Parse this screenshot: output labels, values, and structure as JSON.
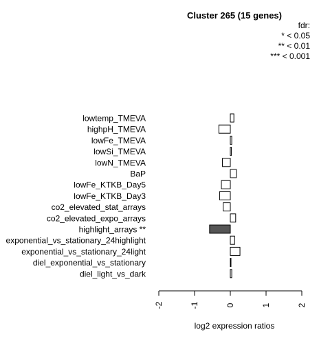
{
  "chart_data": {
    "type": "bar",
    "orientation": "horizontal",
    "title": "Cluster 265 (15 genes)",
    "legend": {
      "placement": "top-right",
      "lines": [
        "fdr:",
        "* < 0.05",
        "** < 0.01",
        "*** < 0.001"
      ]
    },
    "xlabel": "log2 expression ratios",
    "xlim": [
      -2,
      2
    ],
    "xticks": [
      "-2",
      "-1",
      "0",
      "1",
      "2"
    ],
    "tick_values": [
      -2,
      -1,
      0,
      1,
      2
    ],
    "categories": [
      "lowtemp_TMEVA",
      "highpH_TMEVA",
      "lowFe_TMEVA",
      "lowSi_TMEVA",
      "lowN_TMEVA",
      "BaP",
      "lowFe_KTKB_Day5",
      "lowFe_KTKB_Day3",
      "co2_elevated_stat_arrays",
      "co2_elevated_expo_arrays",
      "highlight_arrays **",
      "exponential_vs_stationary_24highlight",
      "exponential_vs_stationary_24light",
      "diel_exponential_vs_stationary",
      "diel_light_vs_dark"
    ],
    "values": [
      0.1,
      -0.32,
      0.04,
      0.03,
      -0.22,
      0.17,
      -0.25,
      -0.3,
      -0.2,
      0.15,
      -0.58,
      0.12,
      0.27,
      0.01,
      0.04
    ],
    "significant": [
      false,
      false,
      false,
      false,
      false,
      false,
      false,
      false,
      false,
      false,
      true,
      false,
      false,
      false,
      false
    ],
    "colors": {
      "bar": "#ffffff",
      "bar_significant": "#555555",
      "stroke": "#000000",
      "axis": "#000000"
    }
  }
}
